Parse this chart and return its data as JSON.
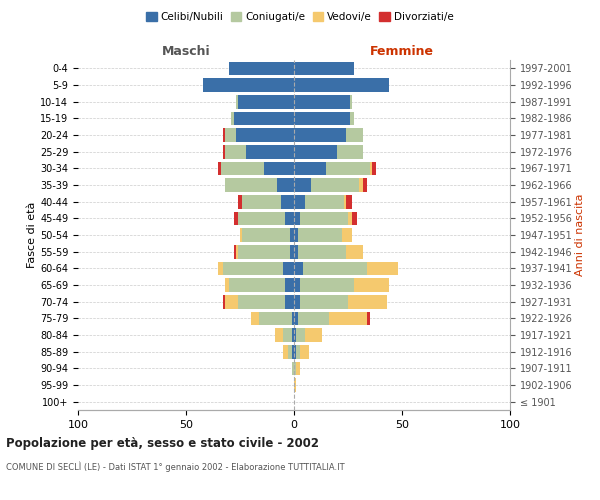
{
  "age_groups": [
    "100+",
    "95-99",
    "90-94",
    "85-89",
    "80-84",
    "75-79",
    "70-74",
    "65-69",
    "60-64",
    "55-59",
    "50-54",
    "45-49",
    "40-44",
    "35-39",
    "30-34",
    "25-29",
    "20-24",
    "15-19",
    "10-14",
    "5-9",
    "0-4"
  ],
  "birth_years": [
    "≤ 1901",
    "1902-1906",
    "1907-1911",
    "1912-1916",
    "1917-1921",
    "1922-1926",
    "1927-1931",
    "1932-1936",
    "1937-1941",
    "1942-1946",
    "1947-1951",
    "1952-1956",
    "1957-1961",
    "1962-1966",
    "1967-1971",
    "1972-1976",
    "1977-1981",
    "1982-1986",
    "1987-1991",
    "1992-1996",
    "1997-2001"
  ],
  "maschi": {
    "celibi": [
      0,
      0,
      0,
      1,
      1,
      1,
      4,
      4,
      5,
      2,
      2,
      4,
      6,
      8,
      14,
      22,
      27,
      28,
      26,
      42,
      30
    ],
    "coniugati": [
      0,
      0,
      1,
      2,
      4,
      15,
      22,
      26,
      28,
      24,
      22,
      22,
      18,
      24,
      20,
      10,
      5,
      1,
      1,
      0,
      0
    ],
    "vedovi": [
      0,
      0,
      0,
      2,
      4,
      4,
      6,
      2,
      2,
      1,
      1,
      0,
      0,
      0,
      0,
      0,
      0,
      0,
      0,
      0,
      0
    ],
    "divorziati": [
      0,
      0,
      0,
      0,
      0,
      0,
      1,
      0,
      0,
      1,
      0,
      2,
      2,
      0,
      1,
      1,
      1,
      0,
      0,
      0,
      0
    ]
  },
  "femmine": {
    "nubili": [
      0,
      0,
      0,
      1,
      1,
      2,
      3,
      3,
      4,
      2,
      2,
      3,
      5,
      8,
      15,
      20,
      24,
      26,
      26,
      44,
      28
    ],
    "coniugate": [
      0,
      0,
      1,
      2,
      4,
      14,
      22,
      25,
      30,
      22,
      20,
      22,
      18,
      22,
      20,
      12,
      8,
      2,
      1,
      0,
      0
    ],
    "vedove": [
      0,
      1,
      2,
      4,
      8,
      18,
      18,
      16,
      14,
      8,
      5,
      2,
      1,
      2,
      1,
      0,
      0,
      0,
      0,
      0,
      0
    ],
    "divorziate": [
      0,
      0,
      0,
      0,
      0,
      1,
      0,
      0,
      0,
      0,
      0,
      2,
      3,
      2,
      2,
      0,
      0,
      0,
      0,
      0,
      0
    ]
  },
  "colors": {
    "celibi": "#3a6fa8",
    "coniugati": "#b5c9a0",
    "vedovi": "#f5c96e",
    "divorziati": "#d32f2f"
  },
  "title": "Popolazione per età, sesso e stato civile - 2002",
  "subtitle": "COMUNE DI SECLÌ (LE) - Dati ISTAT 1° gennaio 2002 - Elaborazione TUTTITALIA.IT",
  "ylabel": "Fasce di età",
  "right_ylabel": "Anni di nascita",
  "xlabel_left": "Maschi",
  "xlabel_right": "Femmine",
  "xlim": 100,
  "background_color": "#ffffff",
  "grid_color": "#cccccc"
}
